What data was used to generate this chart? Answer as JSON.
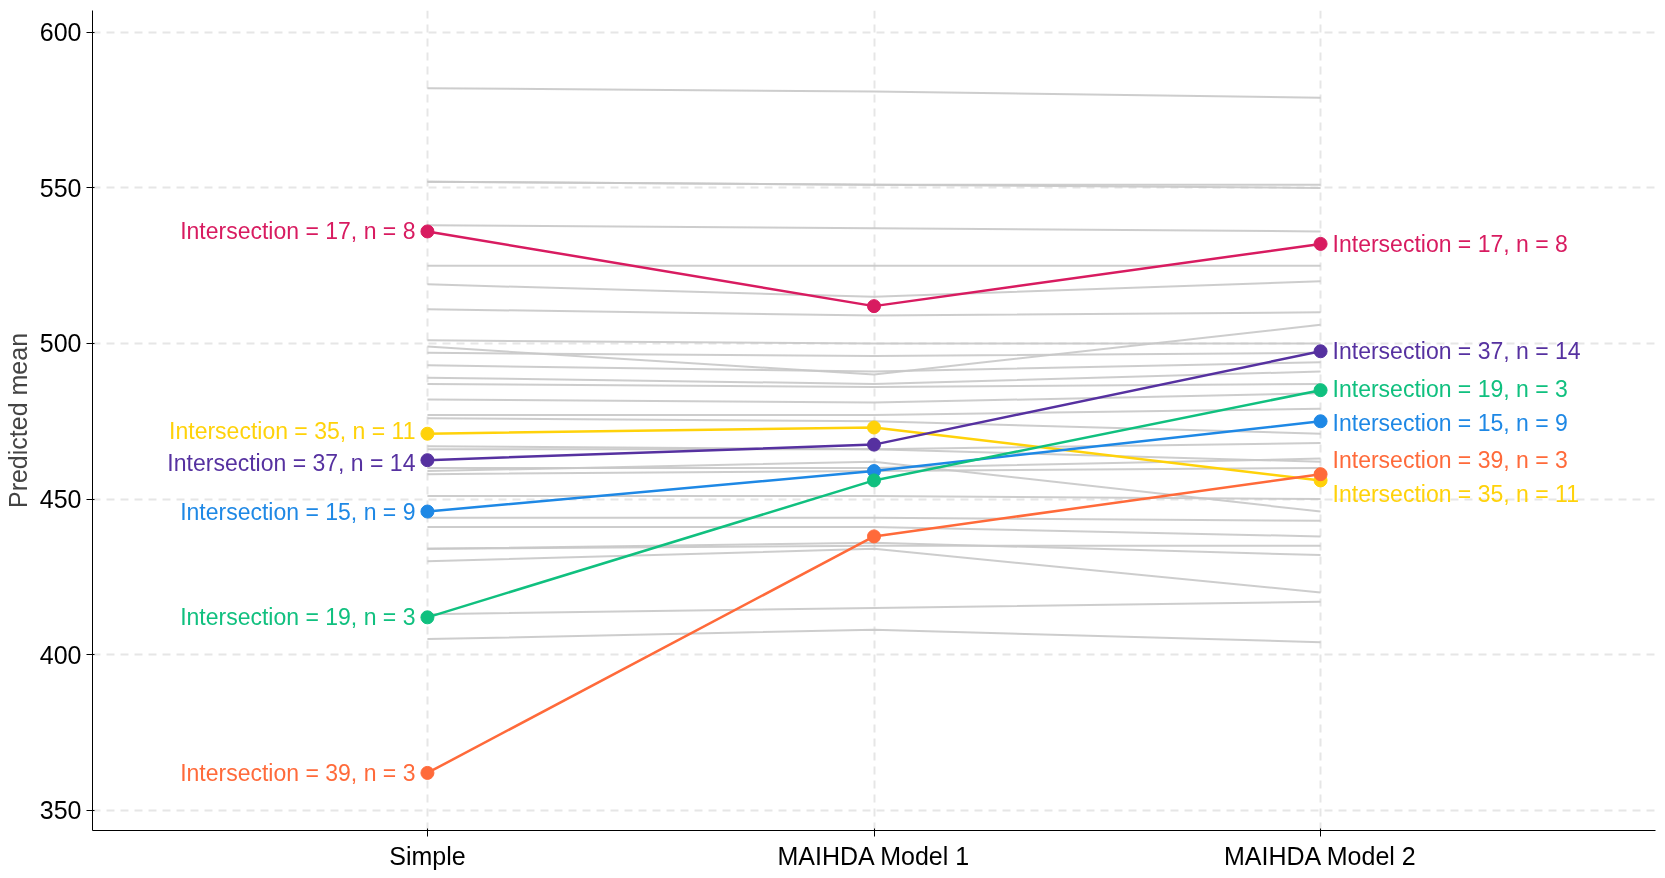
{
  "chart_data": {
    "type": "line",
    "ylabel": "Predicted mean",
    "categories": [
      "Simple",
      "MAIHDA Model 1",
      "MAIHDA Model 2"
    ],
    "ylim": [
      343.5,
      607
    ],
    "yticks": [
      350,
      400,
      450,
      500,
      550,
      600
    ],
    "grid": true,
    "line_style": "solid",
    "series": [
      {
        "color": "#c8c8c8",
        "marker": "none",
        "values": [
          582,
          581,
          579
        ]
      },
      {
        "color": "#c8c8c8",
        "marker": "none",
        "values": [
          552,
          551,
          551
        ]
      },
      {
        "color": "#c8c8c8",
        "marker": "none",
        "values": [
          552,
          551,
          550
        ]
      },
      {
        "color": "#c8c8c8",
        "marker": "none",
        "values": [
          538,
          537,
          536
        ]
      },
      {
        "color": "#c8c8c8",
        "marker": "none",
        "values": [
          525,
          525,
          525
        ]
      },
      {
        "color": "#c8c8c8",
        "marker": "none",
        "values": [
          519,
          515,
          520
        ]
      },
      {
        "color": "#c8c8c8",
        "marker": "none",
        "values": [
          511,
          509,
          510
        ]
      },
      {
        "color": "#c8c8c8",
        "marker": "none",
        "values": [
          501,
          500,
          500
        ]
      },
      {
        "color": "#c8c8c8",
        "marker": "none",
        "values": [
          499,
          490,
          506
        ]
      },
      {
        "color": "#c8c8c8",
        "marker": "none",
        "values": [
          497,
          496,
          497
        ]
      },
      {
        "color": "#c8c8c8",
        "marker": "none",
        "values": [
          493,
          491,
          494
        ]
      },
      {
        "color": "#c8c8c8",
        "marker": "none",
        "values": [
          489,
          487,
          491
        ]
      },
      {
        "color": "#c8c8c8",
        "marker": "none",
        "values": [
          487,
          486,
          487
        ]
      },
      {
        "color": "#c8c8c8",
        "marker": "none",
        "values": [
          482,
          481,
          484
        ]
      },
      {
        "color": "#c8c8c8",
        "marker": "none",
        "values": [
          477,
          477,
          479
        ]
      },
      {
        "color": "#c8c8c8",
        "marker": "none",
        "values": [
          476,
          475,
          471
        ]
      },
      {
        "color": "#c8c8c8",
        "marker": "none",
        "values": [
          467,
          466,
          462
        ]
      },
      {
        "color": "#c8c8c8",
        "marker": "none",
        "values": [
          466,
          466,
          468
        ]
      },
      {
        "color": "#c8c8c8",
        "marker": "none",
        "values": [
          460,
          460,
          463
        ]
      },
      {
        "color": "#c8c8c8",
        "marker": "none",
        "values": [
          459,
          462,
          446
        ]
      },
      {
        "color": "#c8c8c8",
        "marker": "none",
        "values": [
          458,
          459,
          460
        ]
      },
      {
        "color": "#c8c8c8",
        "marker": "none",
        "values": [
          451,
          451,
          450
        ]
      },
      {
        "color": "#c8c8c8",
        "marker": "none",
        "values": [
          444,
          444,
          443
        ]
      },
      {
        "color": "#c8c8c8",
        "marker": "none",
        "values": [
          441,
          441,
          438
        ]
      },
      {
        "color": "#c8c8c8",
        "marker": "none",
        "values": [
          434,
          436,
          432
        ]
      },
      {
        "color": "#c8c8c8",
        "marker": "none",
        "values": [
          434,
          435,
          435
        ]
      },
      {
        "color": "#c8c8c8",
        "marker": "none",
        "values": [
          430,
          434,
          420
        ]
      },
      {
        "color": "#c8c8c8",
        "marker": "none",
        "values": [
          413,
          415,
          417
        ]
      },
      {
        "color": "#c8c8c8",
        "marker": "none",
        "values": [
          405,
          408,
          404
        ]
      },
      {
        "name": "Intersection = 17, n = 8",
        "color": "#d81b60",
        "marker": "circle",
        "values": [
          536,
          512,
          532
        ]
      },
      {
        "name": "Intersection = 35, n = 11",
        "color": "#ffd20a",
        "marker": "circle",
        "values": [
          471,
          473,
          456
        ]
      },
      {
        "name": "Intersection = 37, n = 14",
        "color": "#5631a0",
        "marker": "circle",
        "values": [
          462.5,
          467.5,
          497.5
        ]
      },
      {
        "name": "Intersection = 15, n = 9",
        "color": "#1e88e5",
        "marker": "circle",
        "values": [
          446,
          459,
          475
        ]
      },
      {
        "name": "Intersection = 19, n = 3",
        "color": "#10c07f",
        "marker": "circle",
        "values": [
          412,
          456,
          485
        ]
      },
      {
        "name": "Intersection = 39, n = 3",
        "color": "#ff6a3a",
        "marker": "circle",
        "values": [
          362,
          438,
          458
        ]
      }
    ]
  }
}
